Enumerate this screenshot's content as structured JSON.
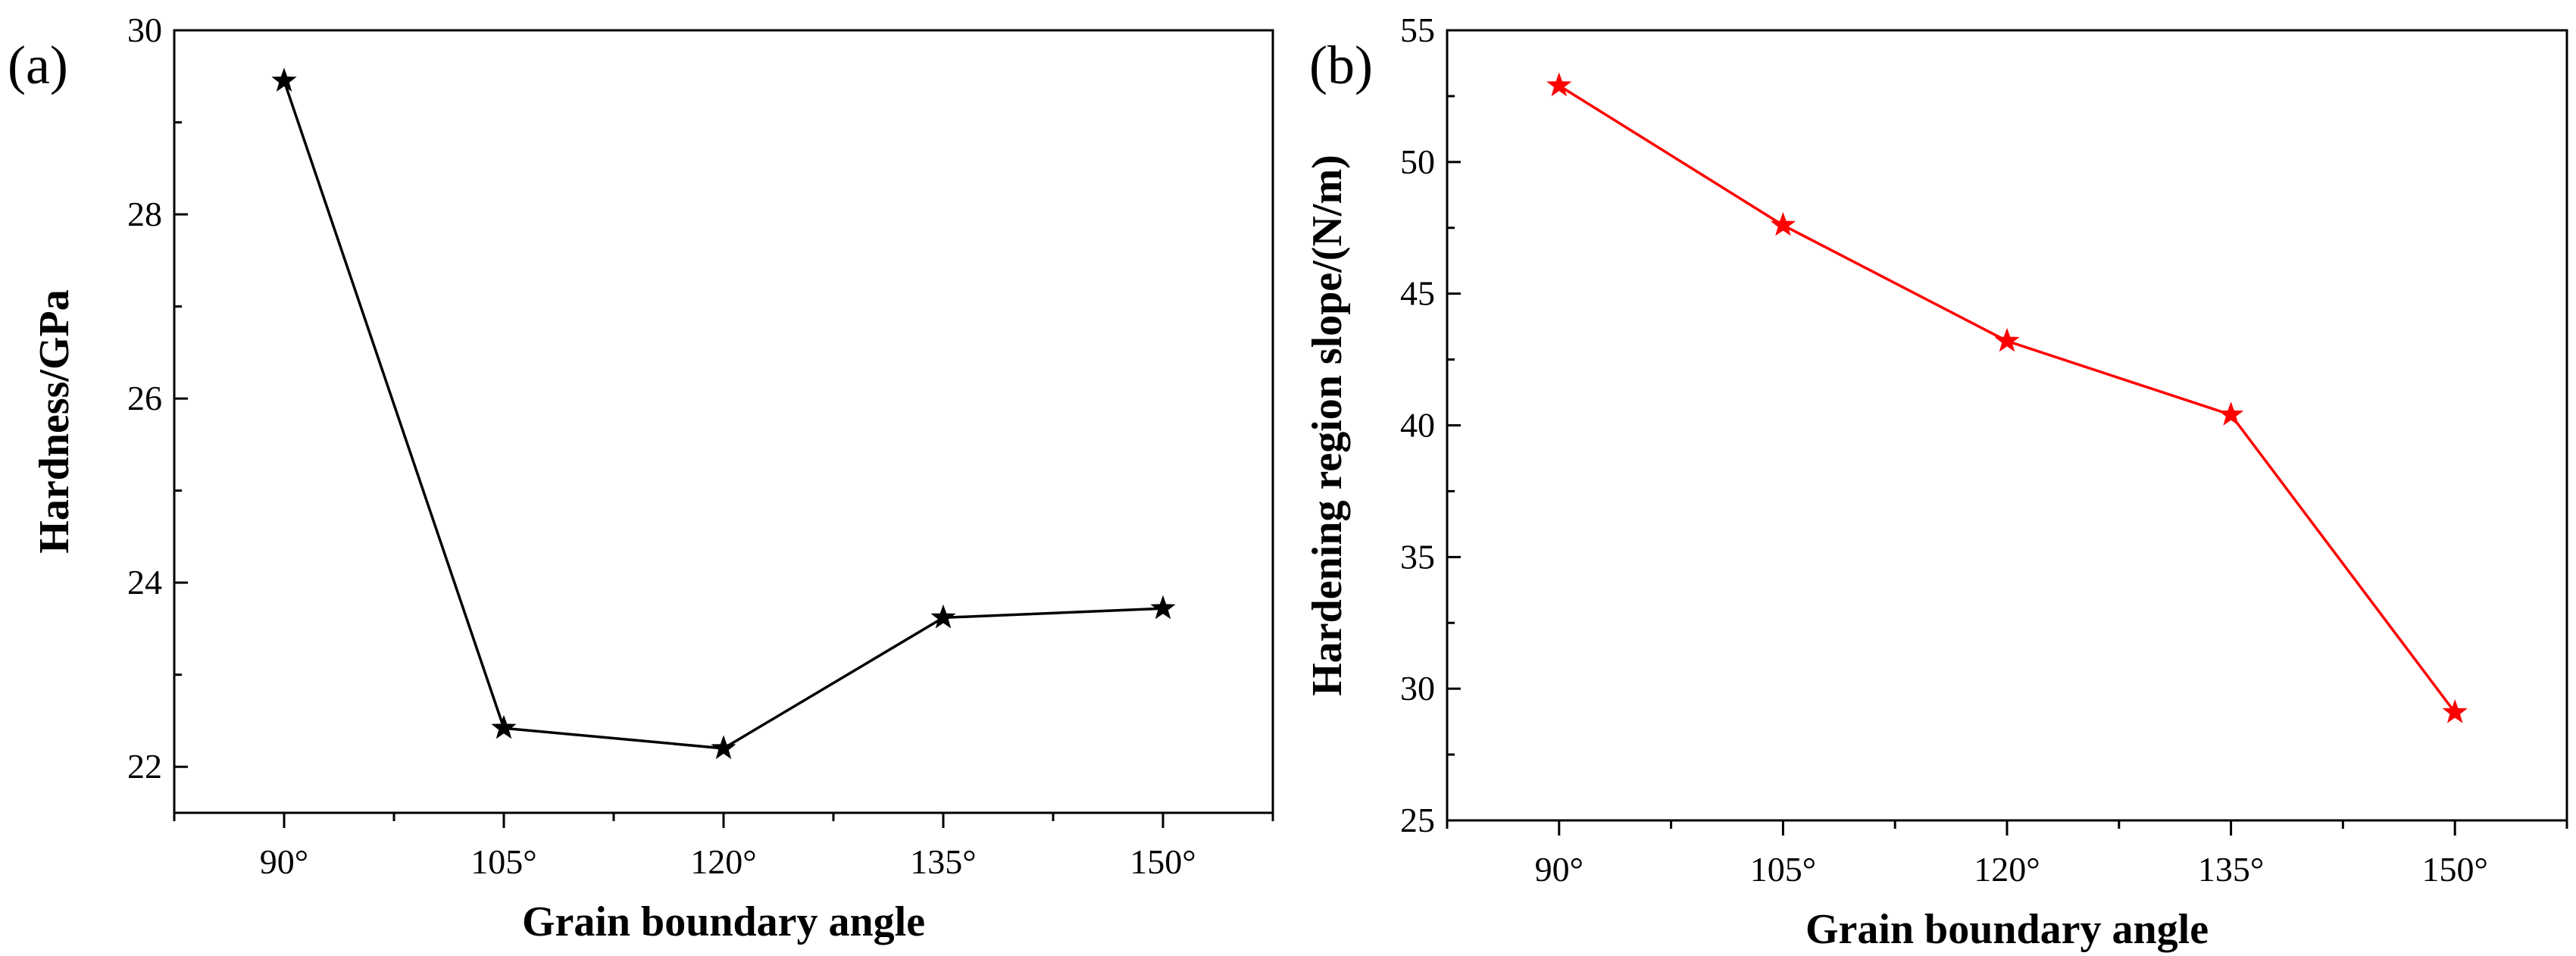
{
  "chart_data": [
    {
      "type": "line",
      "panel_label": "(a)",
      "title": "",
      "xlabel": "Grain boundary angle",
      "ylabel": "Hardness/GPa",
      "categories": [
        "90°",
        "105°",
        "120°",
        "135°",
        "150°"
      ],
      "series": [
        {
          "name": "Hardness",
          "values": [
            29.45,
            22.42,
            22.2,
            23.62,
            23.72
          ],
          "color": "#000000",
          "marker": "star"
        }
      ],
      "ylim": [
        21.5,
        30
      ],
      "yticks": [
        22,
        24,
        26,
        28,
        30
      ],
      "ytick_labels": [
        "22",
        "24",
        "26",
        "28",
        "30"
      ],
      "legend": "none",
      "grid": false
    },
    {
      "type": "line",
      "panel_label": "(b)",
      "title": "",
      "xlabel": "Grain boundary angle",
      "ylabel": "Hardening region slope/(N/m)",
      "categories": [
        "90°",
        "105°",
        "120°",
        "135°",
        "150°"
      ],
      "series": [
        {
          "name": "Hardening region slope",
          "values": [
            52.9,
            47.6,
            43.2,
            40.4,
            29.1
          ],
          "color": "#ff0000",
          "marker": "star"
        }
      ],
      "ylim": [
        25,
        55
      ],
      "yticks": [
        25,
        30,
        35,
        40,
        45,
        50,
        55
      ],
      "ytick_labels": [
        "25",
        "30",
        "35",
        "40",
        "45",
        "50",
        "55"
      ],
      "legend": "none",
      "grid": false
    }
  ]
}
